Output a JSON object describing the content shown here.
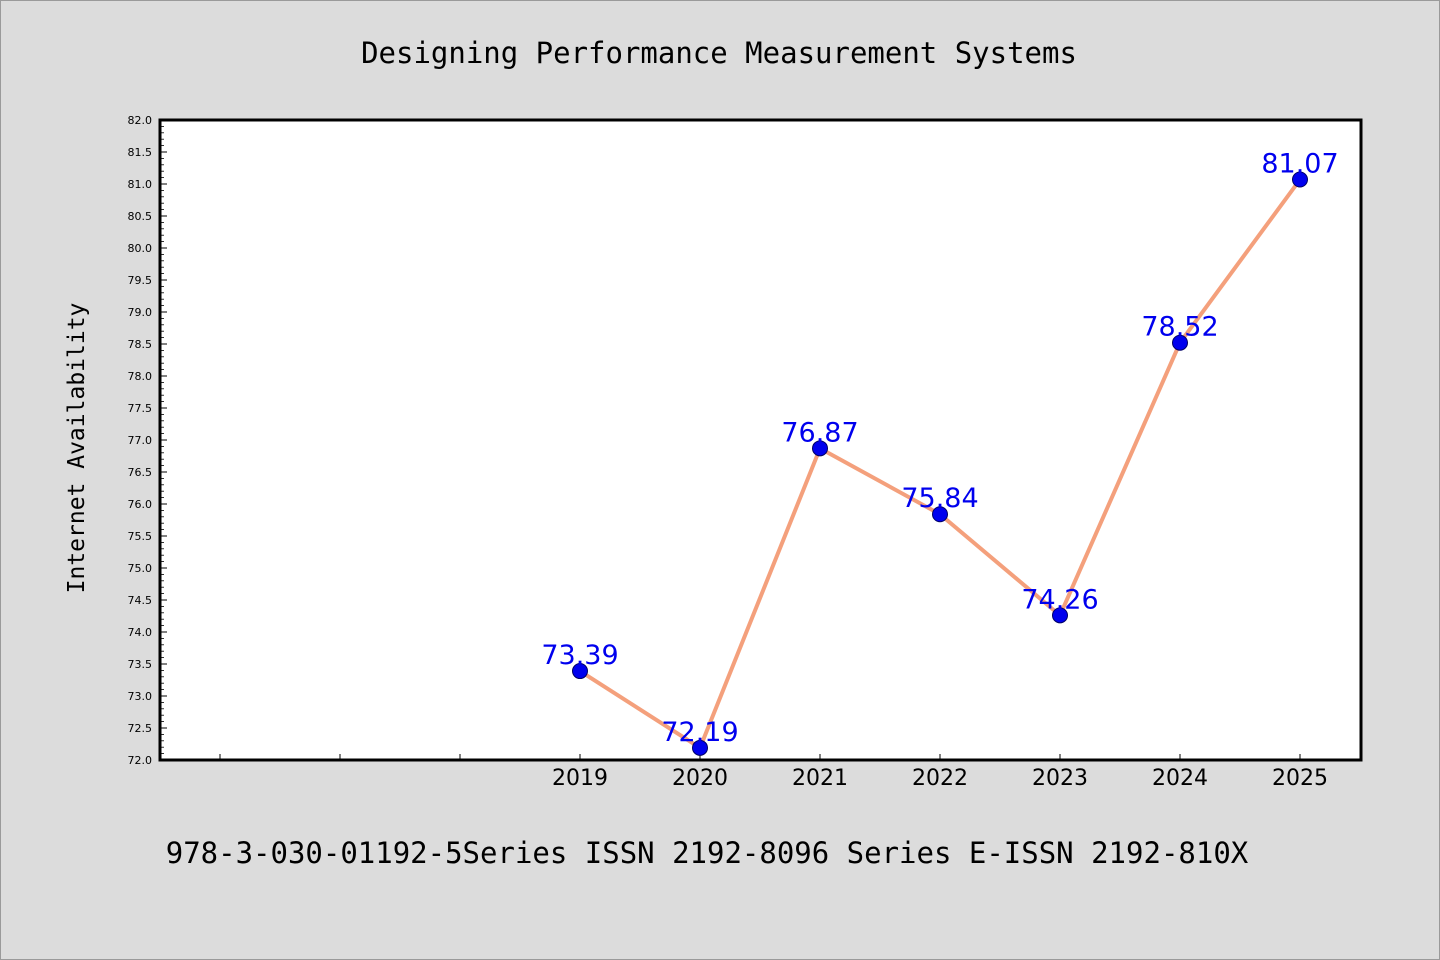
{
  "chart_data": {
    "type": "line",
    "title": "Designing Performance Measurement Systems",
    "footer": "978-3-030-01192-5Series ISSN 2192-8096 Series E-ISSN 2192-810X",
    "ylabel": "Internet Availability",
    "xlabel": "",
    "ylim": [
      72.0,
      82.0
    ],
    "y_ticks": [
      "72.0",
      "72.5",
      "73.0",
      "73.5",
      "74.0",
      "74.5",
      "75.0",
      "75.5",
      "76.0",
      "76.5",
      "77.0",
      "77.5",
      "78.0",
      "78.5",
      "79.0",
      "79.5",
      "80.0",
      "80.5",
      "81.0",
      "81.5",
      "82.0"
    ],
    "categories": [
      "2019",
      "2020",
      "2021",
      "2022",
      "2023",
      "2024",
      "2025"
    ],
    "series": [
      {
        "values": [
          73.39,
          72.19,
          76.87,
          75.84,
          74.26,
          78.52,
          81.07
        ],
        "labels": [
          "73.39",
          "72.19",
          "76.87",
          "75.84",
          "74.26",
          "78.52",
          "81.07"
        ],
        "line_color": "#f4a07c",
        "marker_color": "#0000ee",
        "label_color": "#0000ee"
      }
    ],
    "grid": false,
    "legend": "none",
    "colors": {
      "background": "#dcdcdc",
      "plot_background": "#ffffff",
      "axis": "#000000"
    }
  }
}
